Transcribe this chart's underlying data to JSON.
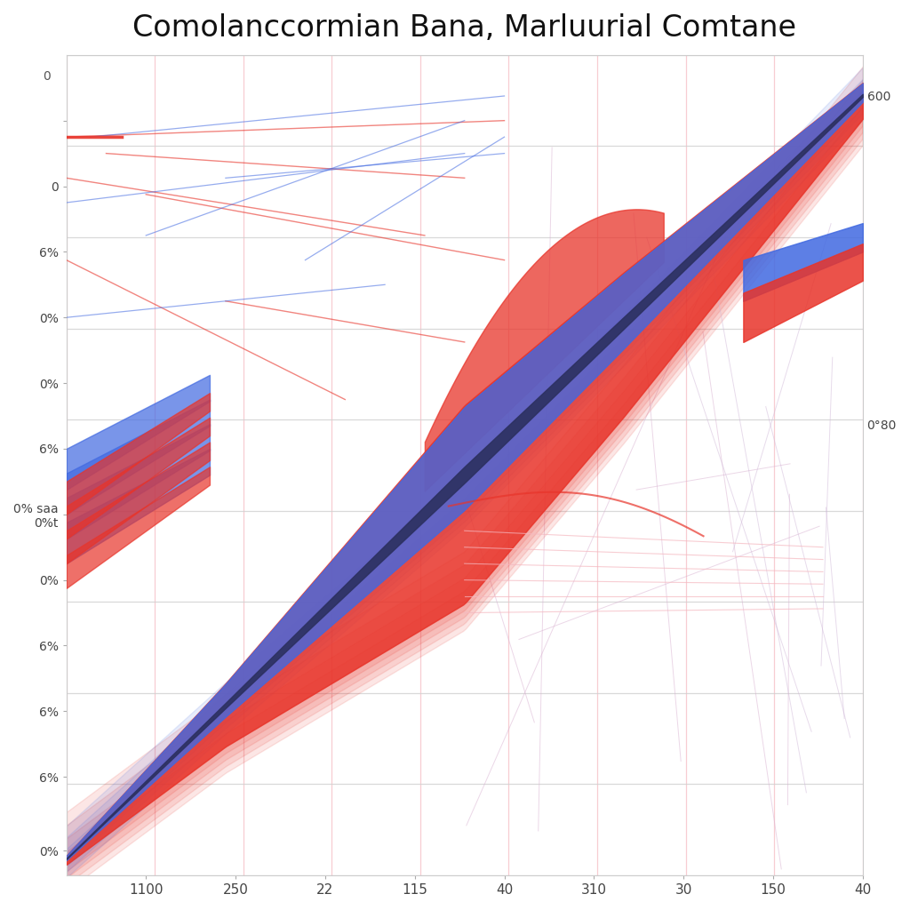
{
  "title": "Comolanccormian Bana, Marluurial Comtane",
  "title_fontsize": 24,
  "background_color": "#ffffff",
  "x_labels": [
    "1100",
    "250",
    "22",
    "115",
    "40",
    "310",
    "30",
    "150",
    "40"
  ],
  "blue_color": "#4169e1",
  "red_color": "#e8342a",
  "dark_color": "#2c3060",
  "light_red": "#f08080",
  "light_blue": "#8ab4e8",
  "light_pink": "#f5b8c0"
}
